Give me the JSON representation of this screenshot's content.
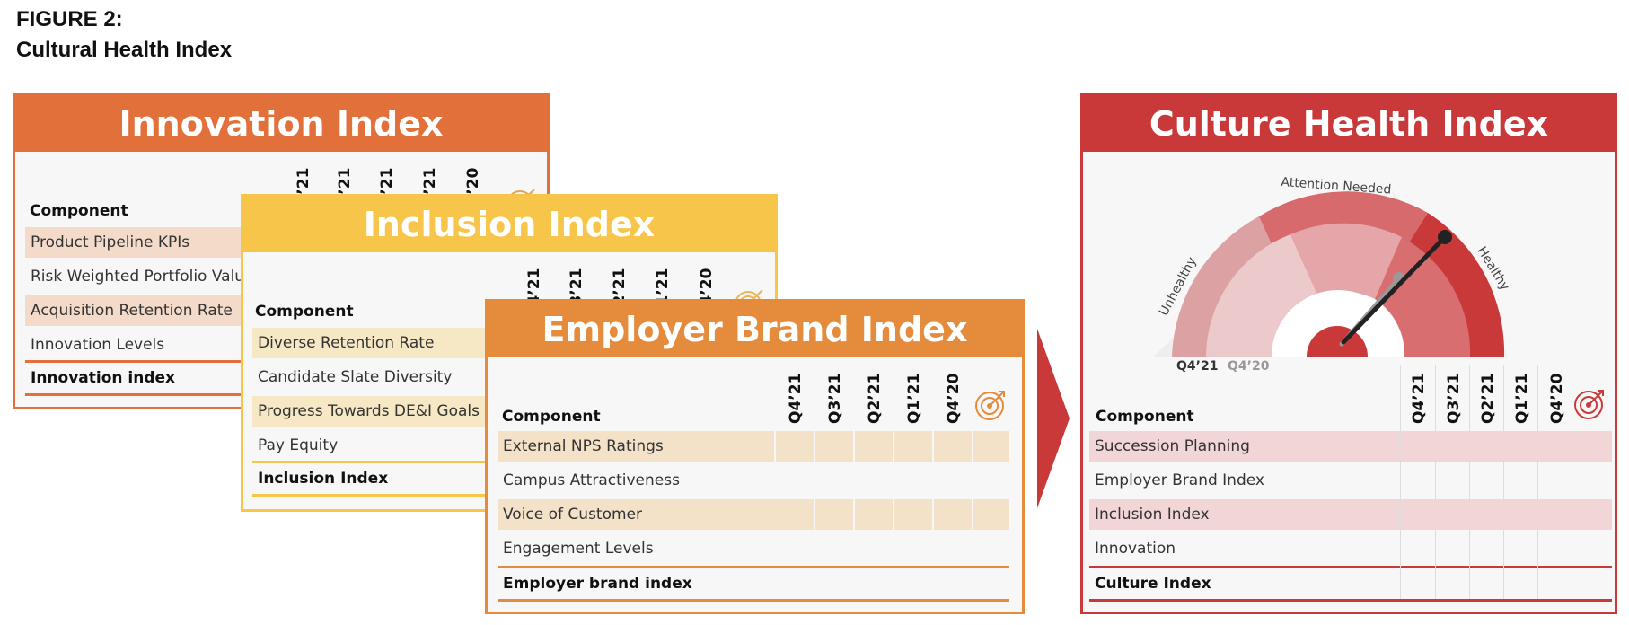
{
  "figure": {
    "label": "FIGURE 2:",
    "title": "Cultural Health Index"
  },
  "quarters": [
    "Q4’21",
    "Q3’21",
    "Q2’21",
    "Q1’21",
    "Q4’20"
  ],
  "innovation": {
    "title": "Innovation Index",
    "component_header": "Component",
    "rows": [
      "Product Pipeline KPIs",
      "Risk Weighted Portfolio Value",
      "Acquisition Retention Rate",
      "Innovation Levels"
    ],
    "total": "Innovation index",
    "color": "#e2703a"
  },
  "inclusion": {
    "title": "Inclusion Index",
    "component_header": "Component",
    "rows": [
      "Diverse Retention Rate",
      "Candidate Slate Diversity",
      "Progress Towards DE&I Goals",
      "Pay Equity"
    ],
    "total": "Inclusion Index",
    "color": "#f7c54a"
  },
  "employer": {
    "title": "Employer Brand Index",
    "component_header": "Component",
    "rows": [
      "External NPS Ratings",
      "Campus Attractiveness",
      "Voice of Customer",
      "Engagement Levels"
    ],
    "total": "Employer brand index",
    "color": "#e48b3c"
  },
  "culture": {
    "title": "Culture Health Index",
    "component_header": "Component",
    "rows": [
      "Succession Planning",
      "Employer Brand Index",
      "Inclusion Index",
      "Innovation"
    ],
    "total": "Culture Index",
    "color": "#c9393a",
    "gauge": {
      "zone_unhealthy": "Unhealthy",
      "zone_attention": "Attention Needed",
      "zone_healthy": "Healthy",
      "current_label": "Q4’21",
      "previous_label": "Q4’20"
    }
  }
}
